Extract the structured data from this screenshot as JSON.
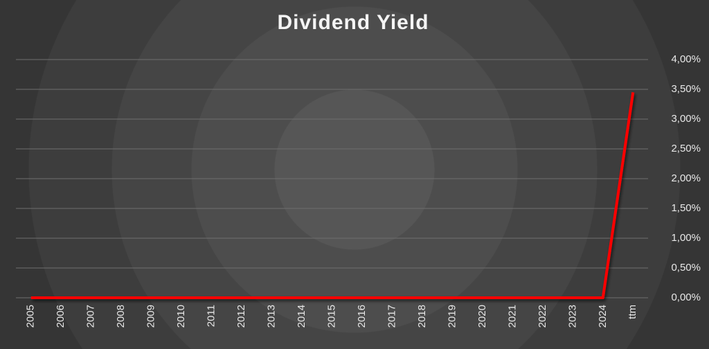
{
  "chart_data": {
    "type": "line",
    "title": "Dividend Yield",
    "categories": [
      "2005",
      "2006",
      "2007",
      "2008",
      "2009",
      "2010",
      "2011",
      "2012",
      "2013",
      "2014",
      "2015",
      "2016",
      "2017",
      "2018",
      "2019",
      "2020",
      "2021",
      "2022",
      "2023",
      "2024",
      "ttm"
    ],
    "values": [
      0,
      0,
      0,
      0,
      0,
      0,
      0,
      0,
      0,
      0,
      0,
      0,
      0,
      0,
      0,
      0,
      0,
      0,
      0,
      0,
      3.45
    ],
    "color": "#ff0000",
    "ylim": [
      0,
      4
    ],
    "yticks": [
      {
        "value": 0,
        "label": "0,00%"
      },
      {
        "value": 0.5,
        "label": "0,50%"
      },
      {
        "value": 1,
        "label": "1,00%"
      },
      {
        "value": 1.5,
        "label": "1,50%"
      },
      {
        "value": 2,
        "label": "2,00%"
      },
      {
        "value": 2.5,
        "label": "2,50%"
      },
      {
        "value": 3,
        "label": "3,00%"
      },
      {
        "value": 3.5,
        "label": "3,50%"
      },
      {
        "value": 4,
        "label": "4,00%"
      }
    ],
    "grid": true
  }
}
